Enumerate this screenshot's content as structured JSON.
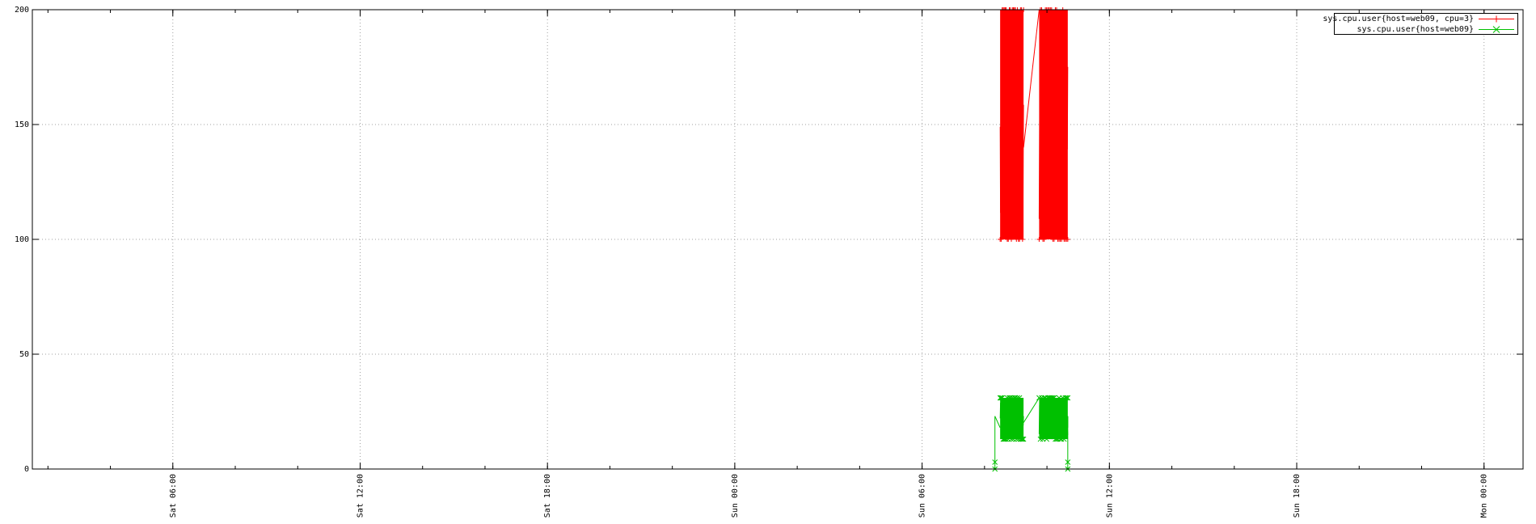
{
  "chart_data": {
    "type": "line",
    "title": "",
    "xlabel": "",
    "ylabel": "",
    "grid": true,
    "legend_position": "top-right",
    "xlim": [
      "Sat 00:00 approx",
      "Mon 01:30 approx"
    ],
    "ylim": [
      0,
      200
    ],
    "y_ticks": [
      "0",
      "50",
      "100",
      "150",
      "200"
    ],
    "x_ticks": [
      "Sat 06:00",
      "Sat 12:00",
      "Sat 18:00",
      "Sun 00:00",
      "Sun 06:00",
      "Sun 12:00",
      "Sun 18:00",
      "Mon 00:00"
    ],
    "series": [
      {
        "name": "sys.cpu.user{host=web09, cpu=3}",
        "color": "#ff0000",
        "marker": "plus",
        "segments": [
          {
            "start": "Sun 08:30",
            "end": "Sun 09:15",
            "min": 100,
            "max": 200
          },
          {
            "start": "Sun 09:45",
            "end": "Sun 10:40",
            "min": 100,
            "max": 200
          }
        ]
      },
      {
        "name": "sys.cpu.user{host=web09}",
        "color": "#00c000",
        "marker": "cross",
        "segments": [
          {
            "start": "Sun 08:30",
            "end": "Sun 09:15",
            "min": 13,
            "max": 31
          },
          {
            "start": "Sun 09:45",
            "end": "Sun 10:40",
            "min": 13,
            "max": 31
          }
        ],
        "edge_values": [
          {
            "x": "Sun 08:20",
            "y": 0
          },
          {
            "x": "Sun 10:40",
            "y": 0
          }
        ]
      }
    ]
  }
}
